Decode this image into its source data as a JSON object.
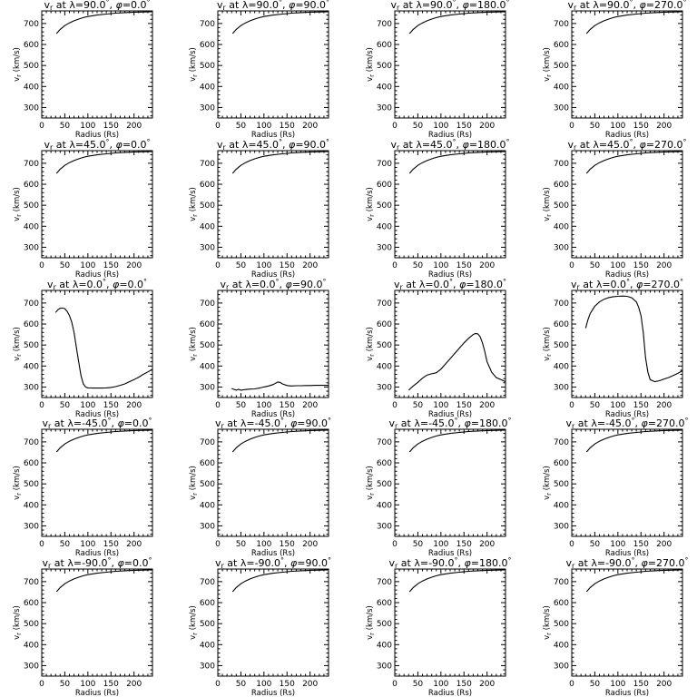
{
  "figure": {
    "xlabel": "Radius (Rs)",
    "ylabel": "v",
    "ylabel_sub": "r",
    "ylabel_unit": " (km/s)",
    "title_prefix": "v",
    "title_sub": "r",
    "title_at": " at ",
    "lambda_symbol": "λ",
    "phi_symbol": "φ",
    "title_sep": ", ",
    "equals": "=",
    "degree": "°",
    "xlim": [
      0,
      240
    ],
    "ylim": [
      250,
      760
    ],
    "xticks": [
      0,
      50,
      100,
      150,
      200
    ],
    "yticks": [
      300,
      400,
      500,
      600,
      700
    ]
  },
  "chart_data": [
    {
      "type": "line",
      "lat": "90.0",
      "lon": "0.0",
      "x": [
        32,
        40,
        50,
        60,
        70,
        80,
        90,
        100,
        120,
        140,
        160,
        180,
        200,
        220,
        240
      ],
      "y": [
        652,
        672,
        690,
        703,
        713,
        721,
        728,
        733,
        740,
        745,
        749,
        752,
        754,
        755,
        756
      ]
    },
    {
      "type": "line",
      "lat": "90.0",
      "lon": "90.0",
      "x": [
        32,
        40,
        50,
        60,
        70,
        80,
        90,
        100,
        120,
        140,
        160,
        180,
        200,
        220,
        240
      ],
      "y": [
        652,
        672,
        690,
        703,
        713,
        721,
        728,
        733,
        740,
        745,
        749,
        752,
        754,
        755,
        756
      ]
    },
    {
      "type": "line",
      "lat": "90.0",
      "lon": "180.0",
      "x": [
        32,
        40,
        50,
        60,
        70,
        80,
        90,
        100,
        120,
        140,
        160,
        180,
        200,
        220,
        240
      ],
      "y": [
        652,
        672,
        690,
        703,
        713,
        721,
        728,
        733,
        740,
        745,
        749,
        752,
        754,
        755,
        756
      ]
    },
    {
      "type": "line",
      "lat": "90.0",
      "lon": "270.0",
      "x": [
        32,
        40,
        50,
        60,
        70,
        80,
        90,
        100,
        120,
        140,
        160,
        180,
        200,
        220,
        240
      ],
      "y": [
        652,
        672,
        690,
        703,
        713,
        721,
        728,
        733,
        740,
        745,
        749,
        752,
        754,
        755,
        756
      ]
    },
    {
      "type": "line",
      "lat": "45.0",
      "lon": "0.0",
      "x": [
        32,
        40,
        50,
        60,
        70,
        80,
        90,
        100,
        120,
        140,
        160,
        180,
        200,
        220,
        240
      ],
      "y": [
        652,
        672,
        690,
        703,
        713,
        721,
        728,
        733,
        740,
        745,
        749,
        752,
        754,
        755,
        756
      ]
    },
    {
      "type": "line",
      "lat": "45.0",
      "lon": "90.0",
      "x": [
        32,
        40,
        50,
        60,
        70,
        80,
        90,
        100,
        120,
        140,
        160,
        180,
        200,
        220,
        240
      ],
      "y": [
        652,
        672,
        690,
        703,
        713,
        721,
        728,
        733,
        740,
        745,
        749,
        752,
        754,
        755,
        756
      ]
    },
    {
      "type": "line",
      "lat": "45.0",
      "lon": "180.0",
      "x": [
        32,
        40,
        50,
        60,
        70,
        80,
        90,
        100,
        120,
        140,
        160,
        180,
        200,
        220,
        240
      ],
      "y": [
        652,
        672,
        690,
        703,
        713,
        721,
        728,
        733,
        740,
        745,
        749,
        752,
        754,
        755,
        756
      ]
    },
    {
      "type": "line",
      "lat": "45.0",
      "lon": "270.0",
      "x": [
        32,
        40,
        50,
        60,
        70,
        80,
        90,
        100,
        120,
        140,
        160,
        180,
        200,
        220,
        240
      ],
      "y": [
        652,
        672,
        690,
        703,
        713,
        721,
        728,
        733,
        740,
        745,
        749,
        752,
        754,
        755,
        756
      ]
    },
    {
      "type": "line",
      "lat": "0.0",
      "lon": "0.0",
      "x": [
        30,
        35,
        40,
        45,
        50,
        55,
        60,
        65,
        70,
        75,
        80,
        85,
        90,
        95,
        100,
        110,
        120,
        130,
        140,
        150,
        160,
        170,
        180,
        190,
        200,
        210,
        220,
        230,
        240
      ],
      "y": [
        655,
        668,
        675,
        676,
        673,
        660,
        640,
        610,
        560,
        490,
        420,
        355,
        315,
        300,
        296,
        295,
        295,
        295,
        296,
        298,
        302,
        308,
        315,
        325,
        335,
        347,
        360,
        372,
        385
      ]
    },
    {
      "type": "line",
      "lat": "0.0",
      "lon": "90.0",
      "x": [
        30,
        35,
        40,
        45,
        50,
        60,
        70,
        80,
        90,
        100,
        110,
        120,
        125,
        130,
        135,
        140,
        150,
        160,
        170,
        180,
        190,
        200,
        210,
        220,
        230,
        240
      ],
      "y": [
        293,
        289,
        285,
        289,
        285,
        288,
        290,
        291,
        295,
        300,
        305,
        312,
        318,
        324,
        322,
        315,
        307,
        305,
        306,
        306,
        307,
        307,
        308,
        308,
        308,
        308
      ]
    },
    {
      "type": "line",
      "lat": "0.0",
      "lon": "180.0",
      "x": [
        30,
        40,
        50,
        60,
        70,
        80,
        90,
        100,
        110,
        120,
        130,
        140,
        150,
        160,
        170,
        175,
        180,
        185,
        190,
        195,
        200,
        210,
        220,
        230,
        240
      ],
      "y": [
        285,
        305,
        322,
        342,
        357,
        363,
        368,
        385,
        410,
        435,
        460,
        485,
        510,
        532,
        550,
        555,
        553,
        540,
        510,
        470,
        420,
        370,
        345,
        335,
        325
      ]
    },
    {
      "type": "line",
      "lat": "0.0",
      "lon": "270.0",
      "x": [
        30,
        35,
        40,
        50,
        60,
        70,
        80,
        90,
        100,
        110,
        120,
        130,
        140,
        145,
        150,
        155,
        160,
        165,
        170,
        180,
        190,
        200,
        210,
        220,
        230,
        240
      ],
      "y": [
        580,
        620,
        650,
        685,
        705,
        718,
        726,
        730,
        732,
        733,
        732,
        725,
        705,
        680,
        640,
        560,
        440,
        370,
        335,
        325,
        330,
        338,
        345,
        355,
        365,
        378
      ]
    },
    {
      "type": "line",
      "lat": "-45.0",
      "lon": "0.0",
      "x": [
        32,
        40,
        50,
        60,
        70,
        80,
        90,
        100,
        120,
        140,
        160,
        180,
        200,
        220,
        240
      ],
      "y": [
        652,
        672,
        690,
        703,
        713,
        721,
        728,
        733,
        740,
        745,
        749,
        752,
        754,
        755,
        756
      ]
    },
    {
      "type": "line",
      "lat": "-45.0",
      "lon": "90.0",
      "x": [
        32,
        40,
        50,
        60,
        70,
        80,
        90,
        100,
        120,
        140,
        160,
        180,
        200,
        220,
        240
      ],
      "y": [
        652,
        672,
        690,
        703,
        713,
        721,
        728,
        733,
        740,
        745,
        749,
        752,
        754,
        755,
        756
      ]
    },
    {
      "type": "line",
      "lat": "-45.0",
      "lon": "180.0",
      "x": [
        32,
        40,
        50,
        60,
        70,
        80,
        90,
        100,
        120,
        140,
        160,
        180,
        200,
        220,
        240
      ],
      "y": [
        652,
        672,
        690,
        703,
        713,
        721,
        728,
        733,
        740,
        745,
        749,
        752,
        754,
        755,
        756
      ]
    },
    {
      "type": "line",
      "lat": "-45.0",
      "lon": "270.0",
      "x": [
        32,
        40,
        50,
        60,
        70,
        80,
        90,
        100,
        120,
        140,
        160,
        180,
        200,
        220,
        240
      ],
      "y": [
        652,
        672,
        690,
        703,
        713,
        721,
        728,
        733,
        740,
        745,
        749,
        752,
        754,
        755,
        756
      ]
    },
    {
      "type": "line",
      "lat": "-90.0",
      "lon": "0.0",
      "x": [
        32,
        40,
        50,
        60,
        70,
        80,
        90,
        100,
        120,
        140,
        160,
        180,
        200,
        220,
        240
      ],
      "y": [
        652,
        672,
        690,
        703,
        713,
        721,
        728,
        733,
        740,
        745,
        749,
        752,
        754,
        755,
        756
      ]
    },
    {
      "type": "line",
      "lat": "-90.0",
      "lon": "90.0",
      "x": [
        32,
        40,
        50,
        60,
        70,
        80,
        90,
        100,
        120,
        140,
        160,
        180,
        200,
        220,
        240
      ],
      "y": [
        652,
        672,
        690,
        703,
        713,
        721,
        728,
        733,
        740,
        745,
        749,
        752,
        754,
        755,
        756
      ]
    },
    {
      "type": "line",
      "lat": "-90.0",
      "lon": "180.0",
      "x": [
        32,
        40,
        50,
        60,
        70,
        80,
        90,
        100,
        120,
        140,
        160,
        180,
        200,
        220,
        240
      ],
      "y": [
        652,
        672,
        690,
        703,
        713,
        721,
        728,
        733,
        740,
        745,
        749,
        752,
        754,
        755,
        756
      ]
    },
    {
      "type": "line",
      "lat": "-90.0",
      "lon": "270.0",
      "x": [
        32,
        40,
        50,
        60,
        70,
        80,
        90,
        100,
        120,
        140,
        160,
        180,
        200,
        220,
        240
      ],
      "y": [
        652,
        672,
        690,
        703,
        713,
        721,
        728,
        733,
        740,
        745,
        749,
        752,
        754,
        755,
        756
      ]
    }
  ]
}
